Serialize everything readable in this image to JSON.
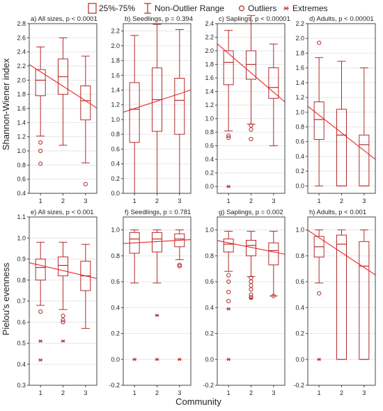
{
  "legend": {
    "box_label": "25%-75%",
    "range_label": "Non-Outlier Range",
    "outlier_label": "Outliers",
    "extreme_label": "Extremes"
  },
  "colors": {
    "box": "#b22a2a",
    "trend": "#ee2222",
    "frame": "#444444",
    "grid": "#e6e6e6"
  },
  "shared_xlabel": "Community",
  "chart_data": [
    {
      "type": "box",
      "title": "a) All sizes, p < 0.0001",
      "ylabel": "Shannon-Wiener index",
      "ylim": [
        0.4,
        2.8
      ],
      "yticks": [
        0.4,
        0.6,
        0.8,
        1.0,
        1.2,
        1.4,
        1.6,
        1.8,
        2.0,
        2.2,
        2.4,
        2.6,
        2.8
      ],
      "categories": [
        "1",
        "2",
        "3"
      ],
      "boxes": [
        {
          "min": 1.21,
          "q1": 1.78,
          "median": 2.0,
          "q3": 2.15,
          "max": 2.47,
          "outliers": [
            1.12,
            1.0,
            0.82
          ],
          "extremes": []
        },
        {
          "min": 1.08,
          "q1": 1.8,
          "median": 2.05,
          "q3": 2.3,
          "max": 2.6,
          "outliers": [],
          "extremes": []
        },
        {
          "min": 0.83,
          "q1": 1.44,
          "median": 1.71,
          "q3": 1.92,
          "max": 2.34,
          "outliers": [
            0.53
          ],
          "extremes": []
        }
      ],
      "trend": [
        2.12,
        1.71
      ]
    },
    {
      "type": "box",
      "title": "b) Seedlings, p = 0.394",
      "ylabel": "",
      "ylim": [
        0.0,
        2.3
      ],
      "yticks": [
        0.0,
        0.2,
        0.4,
        0.6,
        0.8,
        1.0,
        1.2,
        1.4,
        1.6,
        1.8,
        2.0,
        2.2
      ],
      "categories": [
        "1",
        "2",
        "3"
      ],
      "boxes": [
        {
          "min": 0.0,
          "q1": 0.69,
          "median": 1.14,
          "q3": 1.5,
          "max": 2.14,
          "outliers": [],
          "extremes": []
        },
        {
          "min": 0.0,
          "q1": 0.84,
          "median": 1.27,
          "q3": 1.7,
          "max": 2.29,
          "outliers": [],
          "extremes": []
        },
        {
          "min": 0.0,
          "q1": 0.8,
          "median": 1.26,
          "q3": 1.56,
          "max": 2.22,
          "outliers": [],
          "extremes": []
        }
      ],
      "trend": [
        1.15,
        1.35
      ]
    },
    {
      "type": "box",
      "title": "c) Saplings, p < 0.00001",
      "ylabel": "",
      "ylim": [
        -0.1,
        2.4
      ],
      "yticks": [
        0.0,
        0.2,
        0.4,
        0.6,
        0.8,
        1.0,
        1.2,
        1.4,
        1.6,
        1.8,
        2.0,
        2.2,
        2.4
      ],
      "categories": [
        "1",
        "2",
        "3"
      ],
      "boxes": [
        {
          "min": 0.82,
          "q1": 1.5,
          "median": 1.83,
          "q3": 2.0,
          "max": 2.3,
          "outliers": [
            0.75,
            0.72
          ],
          "extremes": [
            0.0
          ]
        },
        {
          "min": 0.92,
          "q1": 1.58,
          "median": 1.8,
          "q3": 2.0,
          "max": 2.52,
          "outliers": [
            0.9,
            0.84,
            0.7
          ],
          "extremes": []
        },
        {
          "min": 0.6,
          "q1": 1.3,
          "median": 1.46,
          "q3": 1.75,
          "max": 2.1,
          "outliers": [],
          "extremes": []
        }
      ],
      "trend": [
        1.96,
        1.39
      ]
    },
    {
      "type": "box",
      "title": "d) Adults, p < 0.00001",
      "ylabel": "",
      "ylim": [
        -0.1,
        2.2
      ],
      "yticks": [
        0.0,
        0.2,
        0.4,
        0.6,
        0.8,
        1.0,
        1.2,
        1.4,
        1.6,
        1.8,
        2.0,
        2.2
      ],
      "categories": [
        "1",
        "2",
        "3"
      ],
      "boxes": [
        {
          "min": 0.0,
          "q1": 0.63,
          "median": 0.9,
          "q3": 1.14,
          "max": 1.74,
          "outliers": [
            1.94
          ],
          "extremes": []
        },
        {
          "min": 0.0,
          "q1": 0.0,
          "median": 0.69,
          "q3": 1.04,
          "max": 1.69,
          "outliers": [],
          "extremes": []
        },
        {
          "min": 0.0,
          "q1": 0.0,
          "median": 0.56,
          "q3": 0.69,
          "max": 1.6,
          "outliers": [],
          "extremes": []
        }
      ],
      "trend": [
        0.96,
        0.48
      ]
    },
    {
      "type": "box",
      "title": "e) All sizes, p < 0.001",
      "ylabel": "Pielou's evenness",
      "ylim": [
        0.3,
        1.1
      ],
      "yticks": [
        0.3,
        0.4,
        0.5,
        0.6,
        0.7,
        0.8,
        0.9,
        1.0,
        1.1
      ],
      "categories": [
        "1",
        "2",
        "3"
      ],
      "boxes": [
        {
          "min": 0.68,
          "q1": 0.8,
          "median": 0.86,
          "q3": 0.9,
          "max": 0.98,
          "outliers": [
            0.65
          ],
          "extremes": [
            0.51,
            0.42
          ]
        },
        {
          "min": 0.66,
          "q1": 0.82,
          "median": 0.87,
          "q3": 0.91,
          "max": 0.98,
          "outliers": [
            0.63,
            0.61,
            0.6
          ],
          "extremes": [
            0.51
          ]
        },
        {
          "min": 0.57,
          "q1": 0.75,
          "median": 0.82,
          "q3": 0.89,
          "max": 0.97,
          "outliers": [],
          "extremes": []
        }
      ],
      "trend": [
        0.87,
        0.82
      ]
    },
    {
      "type": "box",
      "title": "f) Seedlings, p = 0.781",
      "ylabel": "",
      "ylim": [
        -0.2,
        1.1
      ],
      "yticks": [
        -0.2,
        0.0,
        0.2,
        0.4,
        0.6,
        0.8,
        1.0
      ],
      "categories": [
        "1",
        "2",
        "3"
      ],
      "boxes": [
        {
          "min": 0.59,
          "q1": 0.82,
          "median": 0.93,
          "q3": 0.98,
          "max": 1.0,
          "outliers": [],
          "extremes": [
            0.0
          ]
        },
        {
          "min": 0.59,
          "q1": 0.83,
          "median": 0.93,
          "q3": 0.98,
          "max": 1.0,
          "outliers": [],
          "extremes": [
            0.34,
            0.0
          ]
        },
        {
          "min": 0.77,
          "q1": 0.87,
          "median": 0.93,
          "q3": 0.97,
          "max": 1.0,
          "outliers": [
            0.73,
            0.72
          ],
          "extremes": [
            0.0
          ]
        }
      ],
      "trend": [
        0.9,
        0.92
      ]
    },
    {
      "type": "box",
      "title": "g) Saplings, p = 0.002",
      "ylabel": "",
      "ylim": [
        -0.2,
        1.1
      ],
      "yticks": [
        -0.2,
        0.0,
        0.2,
        0.4,
        0.6,
        0.8,
        1.0
      ],
      "categories": [
        "1",
        "2",
        "3"
      ],
      "boxes": [
        {
          "min": 0.68,
          "q1": 0.83,
          "median": 0.89,
          "q3": 0.93,
          "max": 0.99,
          "outliers": [
            0.65,
            0.6,
            0.52,
            0.45
          ],
          "extremes": [
            0.39,
            0.0
          ]
        },
        {
          "min": 0.64,
          "q1": 0.8,
          "median": 0.88,
          "q3": 0.92,
          "max": 0.99,
          "outliers": [
            0.63,
            0.6,
            0.57,
            0.54,
            0.5,
            0.48
          ],
          "extremes": [
            0.47
          ]
        },
        {
          "min": 0.49,
          "q1": 0.73,
          "median": 0.84,
          "q3": 0.9,
          "max": 0.99,
          "outliers": [
            0.49
          ],
          "extremes": []
        }
      ],
      "trend": [
        0.9,
        0.83
      ]
    },
    {
      "type": "box",
      "title": "h) Adults, p < 0.001",
      "ylabel": "",
      "ylim": [
        -0.2,
        1.1
      ],
      "yticks": [
        -0.2,
        0.0,
        0.2,
        0.4,
        0.6,
        0.8,
        1.0
      ],
      "categories": [
        "1",
        "2",
        "3"
      ],
      "boxes": [
        {
          "min": 0.59,
          "q1": 0.79,
          "median": 0.87,
          "q3": 0.95,
          "max": 1.0,
          "outliers": [
            0.51
          ],
          "extremes": [
            0.0
          ]
        },
        {
          "min": 0.0,
          "q1": 0.0,
          "median": 0.89,
          "q3": 0.96,
          "max": 1.0,
          "outliers": [],
          "extremes": []
        },
        {
          "min": 0.0,
          "q1": 0.0,
          "median": 0.72,
          "q3": 0.91,
          "max": 1.0,
          "outliers": [],
          "extremes": []
        }
      ],
      "trend": [
        0.94,
        0.71
      ]
    }
  ]
}
